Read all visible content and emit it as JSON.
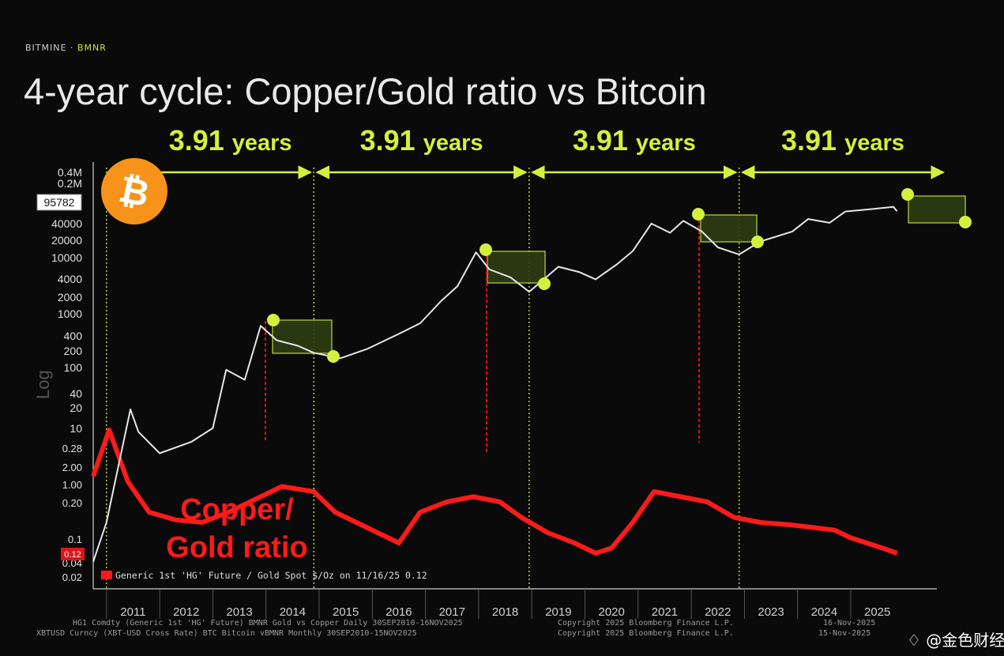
{
  "brand": {
    "company": "BITMINE",
    "separator": " · ",
    "ticker": "BMNR"
  },
  "title": "4-year cycle: Copper/Gold ratio vs Bitcoin",
  "cycle_label": "3.91 years",
  "btc_price_tag": "95782",
  "ratio_price_tag": "0.12",
  "copper_annotation": [
    "Copper/",
    "Gold ratio"
  ],
  "legend_text": "Generic 1st 'HG' Future / Gold Spot $/Oz on 11/16/25 0.12",
  "footer": {
    "line1_left": "HG1 Comdty (Generic 1st 'HG' Future) BMNR Gold vs Copper Daily 30SEP2010-16NOV2025",
    "line2_left": "XBTUSD Curncy (XBT-USD Cross Rate) BTC Bitcoin vBMNR Monthly 30SEP2010-15NOV2025",
    "line1_right": "Copyright 2025 Bloomberg Finance L.P.",
    "line2_right": "Copyright 2025 Bloomberg Finance L.P.",
    "date1": "16-Nov-2025",
    "date2": "15-Nov-2025"
  },
  "watermark": "金色财经",
  "colors": {
    "btc_line": "#e6e6e6",
    "ratio_line": "#ff1a1a",
    "accent": "#d4f03c",
    "btc_badge": "#f7931a"
  },
  "chart_data": {
    "type": "line",
    "title": "4-year cycle: Copper/Gold ratio vs Bitcoin",
    "x_ticks": [
      "2011",
      "2012",
      "2013",
      "2014",
      "2015",
      "2016",
      "2017",
      "2018",
      "2019",
      "2020",
      "2021",
      "2022",
      "2023",
      "2024",
      "2025"
    ],
    "y_btc_ticks": [
      "0.4M",
      "0.2M",
      "95782",
      "40000",
      "20000",
      "10000",
      "4000",
      "2000",
      "1000",
      "400",
      "200",
      "100",
      "40",
      "20",
      "10"
    ],
    "y_ratio_ticks": [
      "0.28",
      "2.00",
      "1.00",
      "0.20",
      "0.1",
      "0.04",
      "0.02"
    ],
    "btc_scale": "log",
    "series": [
      {
        "name": "XBTUSD Curncy (XBT-USD Cross Rate) BTC Bitcoin",
        "x": [
          2010.75,
          2011.0,
          2011.45,
          2011.6,
          2012.0,
          2012.6,
          2013.0,
          2013.25,
          2013.6,
          2013.9,
          2014.2,
          2014.6,
          2014.9,
          2015.4,
          2015.9,
          2016.5,
          2016.9,
          2017.3,
          2017.6,
          2017.95,
          2018.2,
          2018.6,
          2018.95,
          2019.5,
          2019.9,
          2020.2,
          2020.6,
          2020.9,
          2021.25,
          2021.6,
          2021.85,
          2022.2,
          2022.5,
          2022.9,
          2023.3,
          2023.9,
          2024.2,
          2024.6,
          2024.9,
          2025.4,
          2025.8,
          2025.87
        ],
        "y": [
          0.06,
          0.3,
          30,
          12,
          5,
          8,
          14,
          150,
          100,
          900,
          500,
          400,
          300,
          240,
          350,
          650,
          1000,
          2500,
          4500,
          18000,
          9000,
          6500,
          3600,
          10000,
          8000,
          6000,
          11000,
          19000,
          58000,
          40000,
          65000,
          42000,
          22000,
          16500,
          28000,
          42000,
          70000,
          60000,
          95000,
          105000,
          115000,
          95782
        ]
      },
      {
        "name": "Generic 1st 'HG' Future / Gold Spot $/Oz",
        "x": [
          2010.75,
          2011.05,
          2011.4,
          2011.8,
          2012.3,
          2012.8,
          2013.3,
          2013.9,
          2014.3,
          2014.9,
          2015.3,
          2015.9,
          2016.3,
          2016.5,
          2016.9,
          2017.4,
          2017.9,
          2018.4,
          2018.8,
          2019.3,
          2019.8,
          2020.2,
          2020.5,
          2020.9,
          2021.3,
          2021.8,
          2022.3,
          2022.8,
          2023.3,
          2023.9,
          2024.3,
          2024.7,
          2025.0,
          2025.3,
          2025.6,
          2025.87
        ],
        "y": [
          0.27,
          0.36,
          0.26,
          0.2,
          0.185,
          0.18,
          0.2,
          0.23,
          0.25,
          0.24,
          0.2,
          0.17,
          0.15,
          0.14,
          0.2,
          0.22,
          0.23,
          0.22,
          0.19,
          0.16,
          0.14,
          0.12,
          0.13,
          0.18,
          0.24,
          0.23,
          0.22,
          0.19,
          0.18,
          0.175,
          0.17,
          0.165,
          0.15,
          0.14,
          0.13,
          0.12
        ]
      }
    ],
    "cycle_markers": [
      {
        "label": "3.91 years",
        "from": 2011.0,
        "to": 2014.9
      },
      {
        "label": "3.91 years",
        "from": 2014.9,
        "to": 2018.95
      },
      {
        "label": "3.91 years",
        "from": 2018.95,
        "to": 2022.9
      },
      {
        "label": "3.91 years",
        "from": 2022.9,
        "to": 2026.8
      }
    ],
    "peaks": [
      2013.9,
      2017.95,
      2021.85,
      2025.8
    ],
    "bottoms": [
      2015.0,
      2018.95,
      2022.9,
      2026.65
    ]
  }
}
